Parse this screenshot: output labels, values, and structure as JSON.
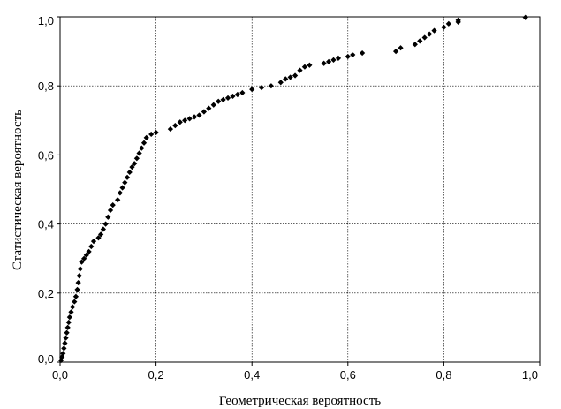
{
  "chart_data": {
    "type": "scatter",
    "title": "",
    "xlabel": "Геометрическая вероятность",
    "ylabel": "Статистическая вероятность",
    "xlim": [
      0,
      1
    ],
    "ylim": [
      0,
      1
    ],
    "grid": true,
    "legend": "none",
    "x_ticks": [
      "0,0",
      "0,2",
      "0,4",
      "0,6",
      "0,8",
      "1,0"
    ],
    "y_ticks": [
      "0,0",
      "0,2",
      "0,4",
      "0,6",
      "0,8",
      "1,0"
    ],
    "marker_color": "#000000",
    "series": [
      {
        "points": [
          [
            0.002,
            0.005
          ],
          [
            0.004,
            0.015
          ],
          [
            0.006,
            0.025
          ],
          [
            0.008,
            0.04
          ],
          [
            0.01,
            0.055
          ],
          [
            0.012,
            0.07
          ],
          [
            0.014,
            0.085
          ],
          [
            0.016,
            0.1
          ],
          [
            0.018,
            0.115
          ],
          [
            0.02,
            0.13
          ],
          [
            0.023,
            0.145
          ],
          [
            0.026,
            0.16
          ],
          [
            0.03,
            0.175
          ],
          [
            0.033,
            0.19
          ],
          [
            0.036,
            0.21
          ],
          [
            0.038,
            0.23
          ],
          [
            0.04,
            0.25
          ],
          [
            0.042,
            0.27
          ],
          [
            0.045,
            0.29
          ],
          [
            0.05,
            0.3
          ],
          [
            0.055,
            0.31
          ],
          [
            0.06,
            0.32
          ],
          [
            0.065,
            0.335
          ],
          [
            0.07,
            0.35
          ],
          [
            0.08,
            0.36
          ],
          [
            0.085,
            0.37
          ],
          [
            0.09,
            0.385
          ],
          [
            0.095,
            0.4
          ],
          [
            0.1,
            0.42
          ],
          [
            0.105,
            0.44
          ],
          [
            0.11,
            0.455
          ],
          [
            0.12,
            0.47
          ],
          [
            0.125,
            0.49
          ],
          [
            0.13,
            0.505
          ],
          [
            0.135,
            0.52
          ],
          [
            0.14,
            0.535
          ],
          [
            0.145,
            0.55
          ],
          [
            0.15,
            0.565
          ],
          [
            0.155,
            0.575
          ],
          [
            0.16,
            0.59
          ],
          [
            0.165,
            0.605
          ],
          [
            0.17,
            0.62
          ],
          [
            0.175,
            0.635
          ],
          [
            0.18,
            0.65
          ],
          [
            0.19,
            0.66
          ],
          [
            0.2,
            0.665
          ],
          [
            0.23,
            0.675
          ],
          [
            0.24,
            0.685
          ],
          [
            0.25,
            0.695
          ],
          [
            0.26,
            0.7
          ],
          [
            0.27,
            0.705
          ],
          [
            0.28,
            0.71
          ],
          [
            0.29,
            0.715
          ],
          [
            0.3,
            0.725
          ],
          [
            0.31,
            0.735
          ],
          [
            0.32,
            0.745
          ],
          [
            0.33,
            0.755
          ],
          [
            0.34,
            0.76
          ],
          [
            0.35,
            0.765
          ],
          [
            0.36,
            0.77
          ],
          [
            0.37,
            0.775
          ],
          [
            0.38,
            0.78
          ],
          [
            0.4,
            0.79
          ],
          [
            0.42,
            0.795
          ],
          [
            0.44,
            0.8
          ],
          [
            0.46,
            0.81
          ],
          [
            0.47,
            0.82
          ],
          [
            0.48,
            0.825
          ],
          [
            0.49,
            0.83
          ],
          [
            0.5,
            0.845
          ],
          [
            0.51,
            0.855
          ],
          [
            0.52,
            0.86
          ],
          [
            0.55,
            0.865
          ],
          [
            0.56,
            0.87
          ],
          [
            0.57,
            0.875
          ],
          [
            0.58,
            0.88
          ],
          [
            0.6,
            0.885
          ],
          [
            0.61,
            0.89
          ],
          [
            0.63,
            0.895
          ],
          [
            0.7,
            0.9
          ],
          [
            0.71,
            0.91
          ],
          [
            0.74,
            0.92
          ],
          [
            0.75,
            0.93
          ],
          [
            0.76,
            0.94
          ],
          [
            0.77,
            0.95
          ],
          [
            0.78,
            0.96
          ],
          [
            0.8,
            0.97
          ],
          [
            0.81,
            0.98
          ],
          [
            0.83,
            0.985
          ],
          [
            0.83,
            0.99
          ],
          [
            0.97,
            0.998
          ]
        ]
      }
    ]
  }
}
